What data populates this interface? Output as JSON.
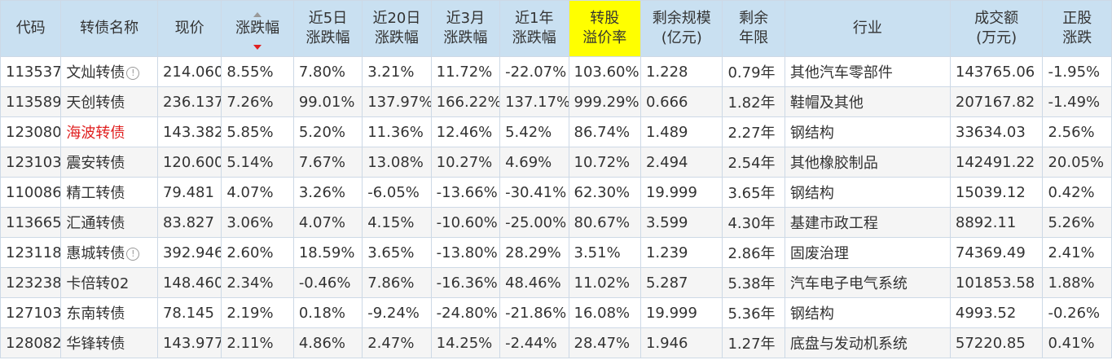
{
  "colors": {
    "header_bg": "#c9e0f1",
    "highlight_header_bg": "#ffff00",
    "code_link": "#2b62b0",
    "rise": "#e02020",
    "fall": "#1a9c1a",
    "stripe": "#f5f5f5"
  },
  "header": {
    "code": "代码",
    "name": "转债名称",
    "price": "现价",
    "change": "涨跌幅",
    "chg5d": [
      "近5日",
      "涨跌幅"
    ],
    "chg20d": [
      "近20日",
      "涨跌幅"
    ],
    "chg3m": [
      "近3月",
      "涨跌幅"
    ],
    "chg1y": [
      "近1年",
      "涨跌幅"
    ],
    "premium": [
      "转股",
      "溢价率"
    ],
    "remaining_size": [
      "剩余规模",
      "(亿元)"
    ],
    "remaining_years": [
      "剩余",
      "年限"
    ],
    "industry": "行业",
    "turnover": [
      "成交额",
      "(万元)"
    ],
    "stock_change": [
      "正股",
      "涨跌"
    ]
  },
  "sort": {
    "column": "change",
    "direction": "desc",
    "icon": "sort-desc-icon"
  },
  "rows": [
    {
      "code": "113537",
      "name": "文灿转债",
      "name_red": false,
      "info": true,
      "price": "214.060",
      "change": "8.55%",
      "chg5d": "7.80%",
      "chg20d": "3.21%",
      "chg3m": "11.72%",
      "chg1y": "-22.07%",
      "premium": "103.60%",
      "remaining_size": "1.228",
      "remaining_years": "0.79年",
      "industry": "其他汽车零部件",
      "turnover": "143765.06",
      "stock_change": "-1.95%"
    },
    {
      "code": "113589",
      "name": "天创转债",
      "name_red": false,
      "info": false,
      "price": "236.137",
      "change": "7.26%",
      "chg5d": "99.01%",
      "chg20d": "137.97%",
      "chg3m": "166.22%",
      "chg1y": "137.17%",
      "premium": "999.29%",
      "remaining_size": "0.666",
      "remaining_years": "1.82年",
      "industry": "鞋帽及其他",
      "turnover": "207167.82",
      "stock_change": "-1.49%"
    },
    {
      "code": "123080",
      "name": "海波转债",
      "name_red": true,
      "info": false,
      "price": "143.382",
      "change": "5.85%",
      "chg5d": "5.20%",
      "chg20d": "11.36%",
      "chg3m": "12.46%",
      "chg1y": "5.42%",
      "premium": "86.74%",
      "remaining_size": "1.489",
      "remaining_years": "2.27年",
      "industry": "钢结构",
      "turnover": "33634.03",
      "stock_change": "2.56%"
    },
    {
      "code": "123103",
      "name": "震安转债",
      "name_red": false,
      "info": false,
      "price": "120.600",
      "change": "5.14%",
      "chg5d": "7.67%",
      "chg20d": "13.08%",
      "chg3m": "10.27%",
      "chg1y": "4.69%",
      "premium": "10.72%",
      "remaining_size": "2.494",
      "remaining_years": "2.54年",
      "industry": "其他橡胶制品",
      "turnover": "142491.22",
      "stock_change": "20.05%"
    },
    {
      "code": "110086",
      "name": "精工转债",
      "name_red": false,
      "info": false,
      "price": "79.481",
      "change": "4.07%",
      "chg5d": "3.26%",
      "chg20d": "-6.05%",
      "chg3m": "-13.66%",
      "chg1y": "-30.41%",
      "premium": "62.30%",
      "remaining_size": "19.999",
      "remaining_years": "3.65年",
      "industry": "钢结构",
      "turnover": "15039.12",
      "stock_change": "0.42%"
    },
    {
      "code": "113665",
      "name": "汇通转债",
      "name_red": false,
      "info": false,
      "price": "83.827",
      "change": "3.06%",
      "chg5d": "4.07%",
      "chg20d": "4.15%",
      "chg3m": "-10.60%",
      "chg1y": "-25.00%",
      "premium": "80.67%",
      "remaining_size": "3.599",
      "remaining_years": "4.30年",
      "industry": "基建市政工程",
      "turnover": "8892.11",
      "stock_change": "5.26%"
    },
    {
      "code": "123118",
      "name": "惠城转债",
      "name_red": false,
      "info": true,
      "price": "392.946",
      "change": "2.60%",
      "chg5d": "18.59%",
      "chg20d": "3.65%",
      "chg3m": "-13.80%",
      "chg1y": "28.29%",
      "premium": "3.51%",
      "remaining_size": "1.239",
      "remaining_years": "2.86年",
      "industry": "固废治理",
      "turnover": "74369.49",
      "stock_change": "2.41%"
    },
    {
      "code": "123238",
      "name": "卡倍转02",
      "name_red": false,
      "info": false,
      "price": "148.460",
      "change": "2.34%",
      "chg5d": "-0.46%",
      "chg20d": "7.86%",
      "chg3m": "-16.36%",
      "chg1y": "48.46%",
      "premium": "11.02%",
      "remaining_size": "5.287",
      "remaining_years": "5.38年",
      "industry": "汽车电子电气系统",
      "turnover": "101853.58",
      "stock_change": "1.88%"
    },
    {
      "code": "127103",
      "name": "东南转债",
      "name_red": false,
      "info": false,
      "price": "78.145",
      "change": "2.19%",
      "chg5d": "0.18%",
      "chg20d": "-9.24%",
      "chg3m": "-24.80%",
      "chg1y": "-21.86%",
      "premium": "16.08%",
      "remaining_size": "19.999",
      "remaining_years": "5.36年",
      "industry": "钢结构",
      "turnover": "4993.52",
      "stock_change": "-0.26%"
    },
    {
      "code": "128082",
      "name": "华锋转债",
      "name_red": false,
      "info": false,
      "price": "143.977",
      "change": "2.11%",
      "chg5d": "4.86%",
      "chg20d": "2.47%",
      "chg3m": "14.25%",
      "chg1y": "-2.44%",
      "premium": "28.47%",
      "remaining_size": "1.946",
      "remaining_years": "1.27年",
      "industry": "底盘与发动机系统",
      "turnover": "57220.85",
      "stock_change": "0.41%"
    }
  ]
}
